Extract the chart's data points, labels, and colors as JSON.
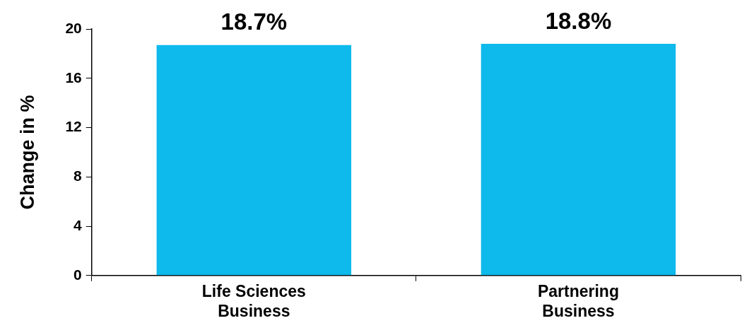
{
  "chart_data": {
    "type": "bar",
    "ylabel": "Change in %",
    "categories": [
      "Life Sciences Business",
      "Partnering Business"
    ],
    "values": [
      18.7,
      18.8
    ],
    "value_labels": [
      "18.7%",
      "18.8%"
    ],
    "color": "#0eb9ec",
    "ylim": [
      0,
      20
    ],
    "yticks": [
      0,
      4,
      8,
      12,
      16,
      20
    ]
  }
}
